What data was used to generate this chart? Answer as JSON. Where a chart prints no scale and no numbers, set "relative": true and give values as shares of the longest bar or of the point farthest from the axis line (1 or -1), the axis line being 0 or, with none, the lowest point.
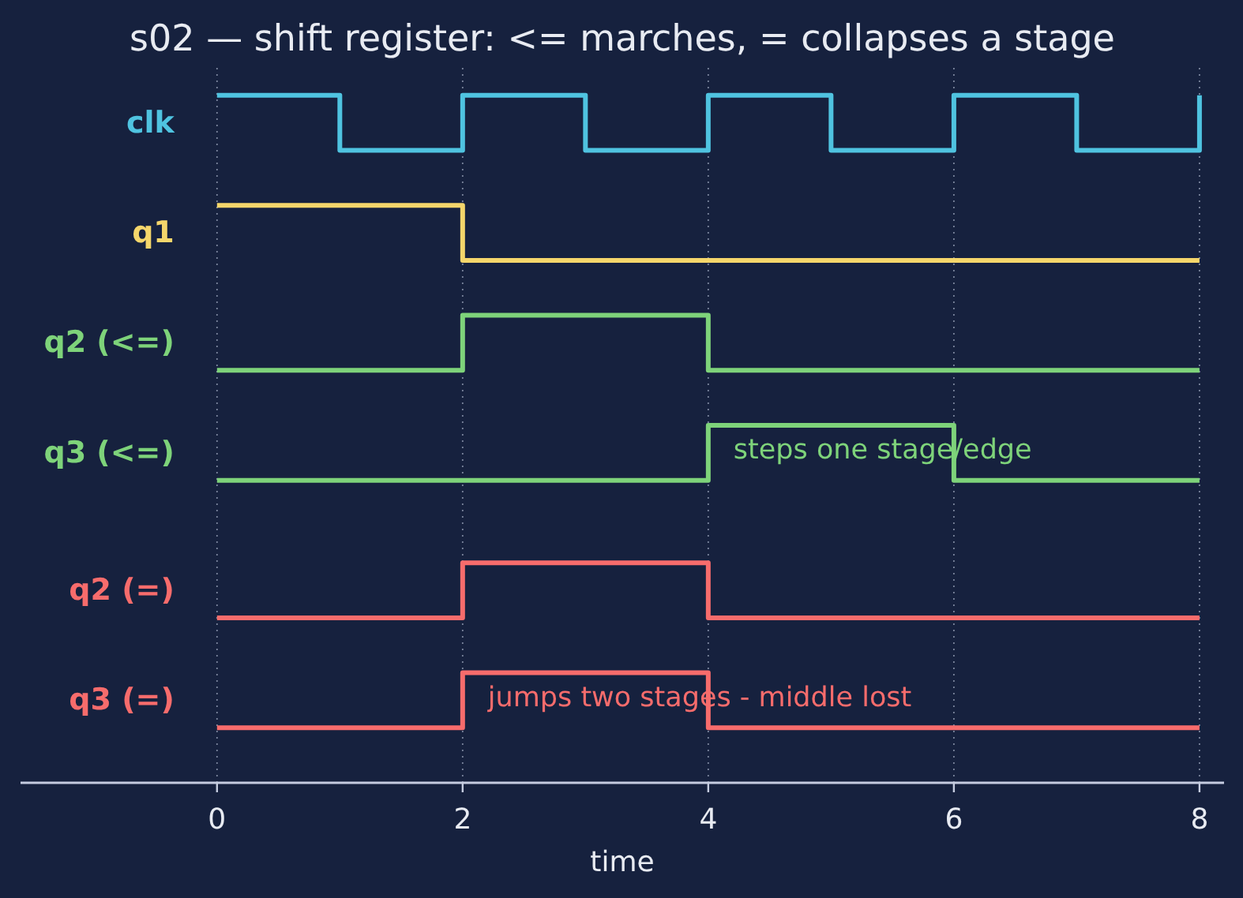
{
  "chart_data": {
    "type": "step",
    "title": "s02 — shift register: <= marches, = collapses a stage",
    "xlabel": "time",
    "relative": true,
    "xlim": [
      -1.6,
      8.2
    ],
    "xticks": [
      0,
      2,
      4,
      6,
      8
    ],
    "grid": "x",
    "series": [
      {
        "name": "clk",
        "color": "#4fc3e0",
        "x": [
          0,
          1,
          2,
          3,
          4,
          5,
          6,
          7,
          8
        ],
        "values": [
          1,
          0.92,
          1,
          0.92,
          1,
          0.92,
          1,
          0.92,
          1
        ]
      },
      {
        "name": "q1",
        "color": "#f5d66b",
        "x": [
          0,
          2,
          8
        ],
        "values": [
          0.84,
          0.76,
          0.76
        ]
      },
      {
        "name": "q2 (<=)",
        "color": "#7ed37a",
        "x": [
          0,
          2,
          4,
          8
        ],
        "values": [
          0.6,
          0.68,
          0.6,
          0.6
        ]
      },
      {
        "name": "q3 (<=)",
        "color": "#7ed37a",
        "x": [
          0,
          4,
          6,
          8
        ],
        "values": [
          0.44,
          0.52,
          0.44,
          0.44
        ]
      },
      {
        "name": "q2 (=)",
        "color": "#f76c6c",
        "x": [
          0,
          2,
          4,
          8
        ],
        "values": [
          0.24,
          0.32,
          0.24,
          0.24
        ]
      },
      {
        "name": "q3 (=)",
        "color": "#f76c6c",
        "x": [
          0,
          2,
          4,
          8
        ],
        "values": [
          0.08,
          0.16,
          0.08,
          0.08
        ]
      }
    ],
    "annotations": [
      {
        "text": "steps one stage/edge",
        "x": 4,
        "y": 0.52
      },
      {
        "text": "jumps two stages - middle lost",
        "x": 2,
        "y": 0.16
      }
    ]
  }
}
